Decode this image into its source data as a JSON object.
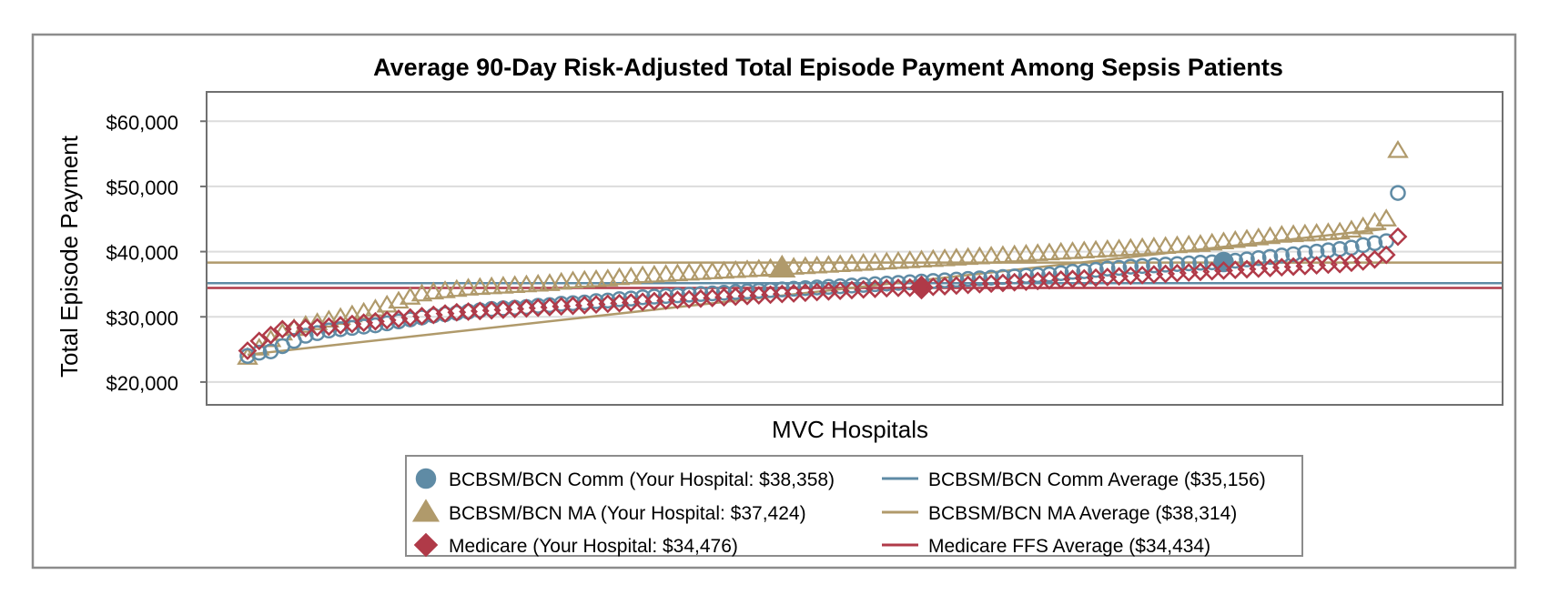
{
  "chart_data": {
    "type": "scatter",
    "title": "Average 90-Day Risk-Adjusted Total Episode Payment Among Sepsis Patients",
    "xlabel": "MVC Hospitals",
    "ylabel": "Total Episode Payment",
    "ylim": [
      16500,
      64500
    ],
    "yticks": [
      20000,
      30000,
      40000,
      50000,
      60000
    ],
    "ytick_labels": [
      "$20,000",
      "$30,000",
      "$40,000",
      "$50,000",
      "$60,000"
    ],
    "grid": true,
    "legend_position": "bottom",
    "hospital_count": 100,
    "series": [
      {
        "name": "BCBSM/BCN Comm (Your Hospital: $38,358)",
        "marker": "circle",
        "color": "#5f8ba5",
        "your_hospital_rank": 84,
        "your_hospital_value": 38358,
        "values": [
          24000,
          24500,
          24700,
          25500,
          26300,
          27100,
          27500,
          27900,
          28100,
          28300,
          28500,
          28700,
          29000,
          29300,
          29600,
          29900,
          30200,
          30400,
          30600,
          30800,
          31000,
          31200,
          31300,
          31400,
          31500,
          31700,
          31800,
          32000,
          32100,
          32200,
          32400,
          32500,
          32700,
          32800,
          33000,
          33100,
          33200,
          33300,
          33400,
          33500,
          33600,
          33700,
          33800,
          33900,
          34000,
          34100,
          34200,
          34300,
          34400,
          34500,
          34600,
          34700,
          34800,
          34900,
          35000,
          35100,
          35200,
          35300,
          35400,
          35500,
          35600,
          35700,
          35800,
          35900,
          36000,
          36100,
          36200,
          36300,
          36400,
          36500,
          36700,
          36900,
          37000,
          37200,
          37400,
          37500,
          37700,
          37800,
          37900,
          38000,
          38100,
          38200,
          38300,
          38358,
          38400,
          38600,
          38800,
          39000,
          39200,
          39400,
          39600,
          39800,
          40000,
          40200,
          40400,
          40600,
          41000,
          41300,
          41600,
          49000
        ]
      },
      {
        "name": "BCBSM/BCN MA (Your Hospital: $37,424)",
        "marker": "triangle",
        "color": "#b09a6b",
        "your_hospital_rank": 46,
        "your_hospital_value": 37424,
        "values": [
          23800,
          25200,
          26500,
          27500,
          28200,
          28700,
          29100,
          29500,
          29900,
          30300,
          30700,
          31200,
          31800,
          32400,
          33000,
          33500,
          33800,
          34000,
          34200,
          34400,
          34500,
          34600,
          34700,
          34800,
          34900,
          35000,
          35100,
          35300,
          35500,
          35600,
          35700,
          35800,
          36000,
          36100,
          36300,
          36400,
          36500,
          36600,
          36700,
          36800,
          36900,
          37000,
          37100,
          37200,
          37300,
          37424,
          37500,
          37600,
          37700,
          37800,
          37900,
          38000,
          38100,
          38200,
          38300,
          38400,
          38500,
          38600,
          38700,
          38800,
          38900,
          39000,
          39100,
          39200,
          39300,
          39400,
          39500,
          39600,
          39700,
          39800,
          39900,
          40000,
          40100,
          40200,
          40300,
          40400,
          40500,
          40600,
          40700,
          40800,
          40900,
          41000,
          41100,
          41300,
          41500,
          41700,
          41900,
          42100,
          42300,
          42500,
          42600,
          42700,
          42800,
          42900,
          43000,
          43300,
          43800,
          44500,
          45000,
          55500
        ]
      },
      {
        "name": "Medicare (Your Hospital: $34,476)",
        "marker": "diamond",
        "color": "#b03a48",
        "your_hospital_rank": 58,
        "your_hospital_value": 34476,
        "values": [
          24800,
          26300,
          27200,
          28100,
          28200,
          28300,
          28400,
          28500,
          28700,
          28900,
          29100,
          29300,
          29500,
          29700,
          29900,
          30100,
          30300,
          30500,
          30700,
          30800,
          30900,
          31000,
          31100,
          31200,
          31300,
          31400,
          31500,
          31600,
          31700,
          31800,
          31900,
          32000,
          32100,
          32200,
          32300,
          32400,
          32500,
          32600,
          32700,
          32800,
          32900,
          33000,
          33100,
          33200,
          33300,
          33400,
          33500,
          33600,
          33700,
          33800,
          33900,
          34000,
          34100,
          34200,
          34300,
          34400,
          34450,
          34476,
          34500,
          34600,
          34700,
          34800,
          34900,
          35000,
          35100,
          35200,
          35300,
          35400,
          35500,
          35600,
          35700,
          35800,
          35900,
          36000,
          36100,
          36200,
          36300,
          36400,
          36500,
          36600,
          36700,
          36800,
          36900,
          37000,
          37100,
          37200,
          37300,
          37400,
          37500,
          37600,
          37700,
          37800,
          37900,
          38000,
          38100,
          38300,
          38500,
          38800,
          39500,
          42300
        ]
      }
    ],
    "averages": [
      {
        "name": "BCBSM/BCN Comm Average ($35,156)",
        "value": 35156,
        "color": "#5f8ba5"
      },
      {
        "name": "BCBSM/BCN MA Average ($38,314)",
        "value": 38314,
        "color": "#b09a6b"
      },
      {
        "name": "Medicare FFS Average ($34,434)",
        "value": 34434,
        "color": "#b03a48"
      }
    ],
    "trend": {
      "series_index": 1,
      "start": 24200,
      "end": 43500
    }
  },
  "colors": {
    "frame": "#8c8c8c",
    "plot_border": "#707070",
    "grid": "#dcdcdc",
    "text": "#000000"
  }
}
